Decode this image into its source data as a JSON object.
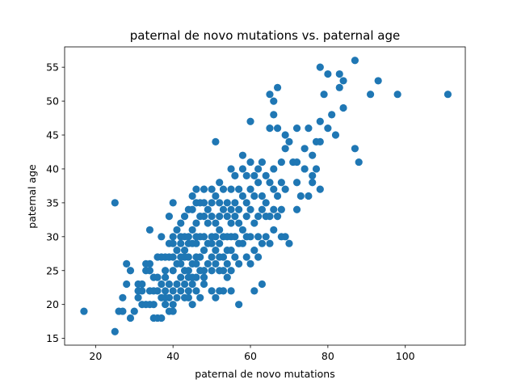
{
  "chart_data": {
    "type": "scatter",
    "title": "paternal de novo mutations vs. paternal age",
    "xlabel": "paternal de novo mutations",
    "ylabel": "paternal age",
    "xlim": [
      12,
      115.5
    ],
    "ylim": [
      14,
      58
    ],
    "xticks": [
      20,
      40,
      60,
      80,
      100
    ],
    "yticks": [
      15,
      20,
      25,
      30,
      35,
      40,
      45,
      50,
      55
    ],
    "grid": false,
    "marker_color": "#1f77b4",
    "series": [
      {
        "points": [
          [
            17,
            19
          ],
          [
            25,
            16
          ],
          [
            25,
            35
          ],
          [
            26,
            19
          ],
          [
            27,
            19
          ],
          [
            27,
            21
          ],
          [
            28,
            23
          ],
          [
            28,
            26
          ],
          [
            29,
            25
          ],
          [
            29,
            18
          ],
          [
            30,
            19
          ],
          [
            31,
            22
          ],
          [
            31,
            23
          ],
          [
            31,
            21
          ],
          [
            32,
            23
          ],
          [
            32,
            20
          ],
          [
            32,
            22
          ],
          [
            33,
            25
          ],
          [
            33,
            26
          ],
          [
            33,
            20
          ],
          [
            34,
            20
          ],
          [
            34,
            22
          ],
          [
            34,
            25
          ],
          [
            34,
            26
          ],
          [
            34,
            31
          ],
          [
            35,
            24
          ],
          [
            35,
            22
          ],
          [
            35,
            20
          ],
          [
            35,
            18
          ],
          [
            36,
            18
          ],
          [
            36,
            24
          ],
          [
            36,
            22
          ],
          [
            36,
            27
          ],
          [
            37,
            18
          ],
          [
            37,
            21
          ],
          [
            37,
            23
          ],
          [
            37,
            27
          ],
          [
            37,
            30
          ],
          [
            38,
            20
          ],
          [
            38,
            25
          ],
          [
            38,
            27
          ],
          [
            38,
            22
          ],
          [
            38,
            24
          ],
          [
            38,
            21
          ],
          [
            39,
            19
          ],
          [
            39,
            21
          ],
          [
            39,
            23
          ],
          [
            39,
            27
          ],
          [
            39,
            29
          ],
          [
            39,
            33
          ],
          [
            40,
            20
          ],
          [
            40,
            25
          ],
          [
            40,
            27
          ],
          [
            40,
            29
          ],
          [
            40,
            30
          ],
          [
            40,
            35
          ],
          [
            40,
            19
          ],
          [
            40,
            22
          ],
          [
            41,
            21
          ],
          [
            41,
            23
          ],
          [
            41,
            26
          ],
          [
            41,
            28
          ],
          [
            41,
            31
          ],
          [
            42,
            22
          ],
          [
            42,
            24
          ],
          [
            42,
            26
          ],
          [
            42,
            27
          ],
          [
            42,
            29
          ],
          [
            42,
            30
          ],
          [
            42,
            32
          ],
          [
            43,
            21
          ],
          [
            43,
            23
          ],
          [
            43,
            25
          ],
          [
            43,
            27
          ],
          [
            43,
            28
          ],
          [
            43,
            30
          ],
          [
            43,
            33
          ],
          [
            44,
            21
          ],
          [
            44,
            22
          ],
          [
            44,
            24
          ],
          [
            44,
            25
          ],
          [
            44,
            27
          ],
          [
            44,
            29
          ],
          [
            44,
            30
          ],
          [
            44,
            34
          ],
          [
            45,
            20
          ],
          [
            45,
            23
          ],
          [
            45,
            24
          ],
          [
            45,
            26
          ],
          [
            45,
            29
          ],
          [
            45,
            31
          ],
          [
            45,
            34
          ],
          [
            45,
            36
          ],
          [
            46,
            22
          ],
          [
            46,
            24
          ],
          [
            46,
            26
          ],
          [
            46,
            27
          ],
          [
            46,
            29
          ],
          [
            46,
            30
          ],
          [
            46,
            32
          ],
          [
            46,
            35
          ],
          [
            46,
            37
          ],
          [
            47,
            21
          ],
          [
            47,
            25
          ],
          [
            47,
            27
          ],
          [
            47,
            30
          ],
          [
            47,
            33
          ],
          [
            47,
            35
          ],
          [
            48,
            23
          ],
          [
            48,
            24
          ],
          [
            48,
            25
          ],
          [
            48,
            28
          ],
          [
            48,
            30
          ],
          [
            48,
            33
          ],
          [
            48,
            35
          ],
          [
            48,
            37
          ],
          [
            49,
            26
          ],
          [
            49,
            29
          ],
          [
            49,
            32
          ],
          [
            49,
            34
          ],
          [
            50,
            22
          ],
          [
            50,
            25
          ],
          [
            50,
            27
          ],
          [
            50,
            29
          ],
          [
            50,
            30
          ],
          [
            50,
            33
          ],
          [
            50,
            35
          ],
          [
            50,
            37
          ],
          [
            51,
            21
          ],
          [
            51,
            26
          ],
          [
            51,
            28
          ],
          [
            51,
            30
          ],
          [
            51,
            32
          ],
          [
            51,
            36
          ],
          [
            51,
            44
          ],
          [
            52,
            22
          ],
          [
            52,
            25
          ],
          [
            52,
            27
          ],
          [
            52,
            29
          ],
          [
            52,
            31
          ],
          [
            52,
            33
          ],
          [
            52,
            35
          ],
          [
            52,
            38
          ],
          [
            53,
            22
          ],
          [
            53,
            25
          ],
          [
            53,
            27
          ],
          [
            53,
            30
          ],
          [
            53,
            34
          ],
          [
            53,
            37
          ],
          [
            54,
            24
          ],
          [
            54,
            26
          ],
          [
            54,
            28
          ],
          [
            54,
            30
          ],
          [
            54,
            33
          ],
          [
            54,
            35
          ],
          [
            55,
            22
          ],
          [
            55,
            25
          ],
          [
            55,
            28
          ],
          [
            55,
            30
          ],
          [
            55,
            32
          ],
          [
            55,
            34
          ],
          [
            55,
            37
          ],
          [
            55,
            40
          ],
          [
            56,
            27
          ],
          [
            56,
            30
          ],
          [
            56,
            33
          ],
          [
            56,
            35
          ],
          [
            56,
            39
          ],
          [
            57,
            20
          ],
          [
            57,
            26
          ],
          [
            57,
            29
          ],
          [
            57,
            32
          ],
          [
            57,
            34
          ],
          [
            57,
            37
          ],
          [
            58,
            29
          ],
          [
            58,
            31
          ],
          [
            58,
            36
          ],
          [
            58,
            40
          ],
          [
            58,
            42
          ],
          [
            59,
            27
          ],
          [
            59,
            30
          ],
          [
            59,
            33
          ],
          [
            59,
            35
          ],
          [
            59,
            39
          ],
          [
            60,
            26
          ],
          [
            60,
            30
          ],
          [
            60,
            34
          ],
          [
            60,
            37
          ],
          [
            60,
            41
          ],
          [
            60,
            47
          ],
          [
            61,
            22
          ],
          [
            61,
            28
          ],
          [
            61,
            32
          ],
          [
            61,
            36
          ],
          [
            61,
            39
          ],
          [
            62,
            27
          ],
          [
            62,
            30
          ],
          [
            62,
            33
          ],
          [
            62,
            38
          ],
          [
            62,
            40
          ],
          [
            63,
            23
          ],
          [
            63,
            29
          ],
          [
            63,
            34
          ],
          [
            63,
            36
          ],
          [
            63,
            41
          ],
          [
            64,
            30
          ],
          [
            64,
            33
          ],
          [
            64,
            35
          ],
          [
            64,
            39
          ],
          [
            65,
            29
          ],
          [
            65,
            33
          ],
          [
            65,
            38
          ],
          [
            65,
            46
          ],
          [
            65,
            51
          ],
          [
            66,
            31
          ],
          [
            66,
            34
          ],
          [
            66,
            37
          ],
          [
            66,
            40
          ],
          [
            66,
            48
          ],
          [
            66,
            50
          ],
          [
            67,
            33
          ],
          [
            67,
            36
          ],
          [
            67,
            46
          ],
          [
            67,
            52
          ],
          [
            68,
            30
          ],
          [
            68,
            34
          ],
          [
            68,
            38
          ],
          [
            68,
            41
          ],
          [
            69,
            30
          ],
          [
            69,
            37
          ],
          [
            69,
            43
          ],
          [
            69,
            45
          ],
          [
            70,
            29
          ],
          [
            70,
            44
          ],
          [
            71,
            41
          ],
          [
            72,
            34
          ],
          [
            72,
            38
          ],
          [
            72,
            41
          ],
          [
            72,
            46
          ],
          [
            73,
            36
          ],
          [
            74,
            40
          ],
          [
            74,
            43
          ],
          [
            75,
            36
          ],
          [
            75,
            46
          ],
          [
            76,
            38
          ],
          [
            76,
            39
          ],
          [
            76,
            42
          ],
          [
            77,
            40
          ],
          [
            77,
            44
          ],
          [
            78,
            37
          ],
          [
            78,
            44
          ],
          [
            78,
            47
          ],
          [
            78,
            55
          ],
          [
            79,
            51
          ],
          [
            80,
            54
          ],
          [
            80,
            46
          ],
          [
            81,
            48
          ],
          [
            82,
            45
          ],
          [
            83,
            52
          ],
          [
            83,
            54
          ],
          [
            84,
            53
          ],
          [
            84,
            49
          ],
          [
            87,
            43
          ],
          [
            87,
            56
          ],
          [
            88,
            41
          ],
          [
            91,
            51
          ],
          [
            93,
            53
          ],
          [
            98,
            51
          ],
          [
            111,
            51
          ]
        ]
      }
    ]
  }
}
